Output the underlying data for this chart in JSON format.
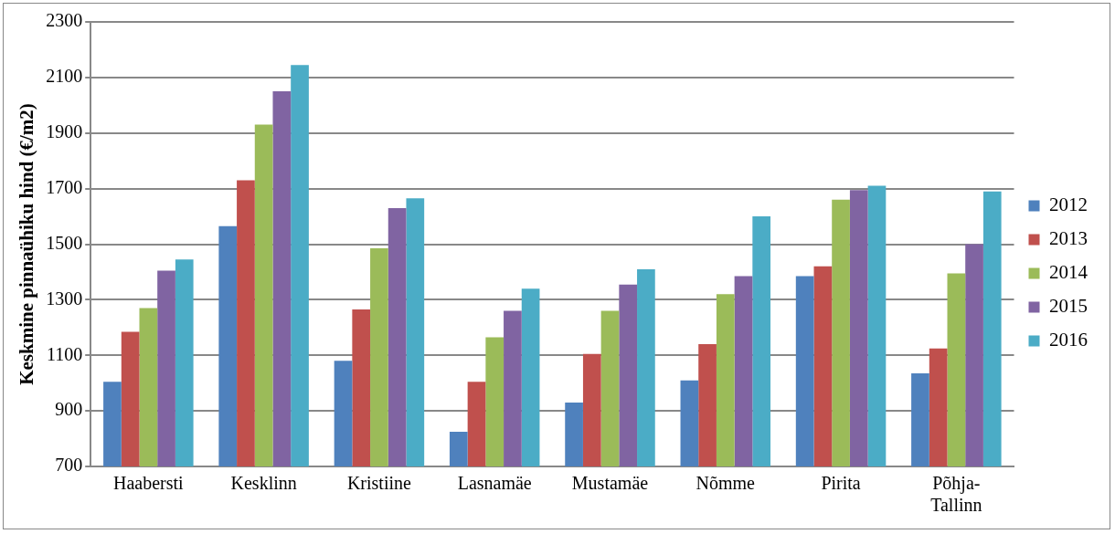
{
  "chart_data": {
    "type": "bar",
    "ylabel": "Keskmine pinnaühiku hind (€/m2)",
    "categories": [
      "Haabersti",
      "Kesklinn",
      "Kristiine",
      "Lasnamäe",
      "Mustamäe",
      "Nõmme",
      "Pirita",
      "Põhja-Tallinn"
    ],
    "series": [
      {
        "name": "2012",
        "color": "#4f81bd",
        "values": [
          1005,
          1565,
          1080,
          825,
          930,
          1010,
          1385,
          1035
        ]
      },
      {
        "name": "2013",
        "color": "#c0504d",
        "values": [
          1185,
          1730,
          1265,
          1005,
          1105,
          1140,
          1420,
          1125
        ]
      },
      {
        "name": "2014",
        "color": "#9bbb59",
        "values": [
          1270,
          1930,
          1485,
          1165,
          1260,
          1320,
          1660,
          1395
        ]
      },
      {
        "name": "2015",
        "color": "#8064a2",
        "values": [
          1405,
          2050,
          1630,
          1260,
          1355,
          1385,
          1695,
          1500
        ]
      },
      {
        "name": "2016",
        "color": "#4bacc6",
        "values": [
          1445,
          2145,
          1665,
          1340,
          1410,
          1600,
          1710,
          1690
        ]
      }
    ],
    "ylim": [
      700,
      2300
    ],
    "yticks": [
      700,
      900,
      1100,
      1300,
      1500,
      1700,
      1900,
      2100,
      2300
    ],
    "grid": "y",
    "legend": "right"
  }
}
